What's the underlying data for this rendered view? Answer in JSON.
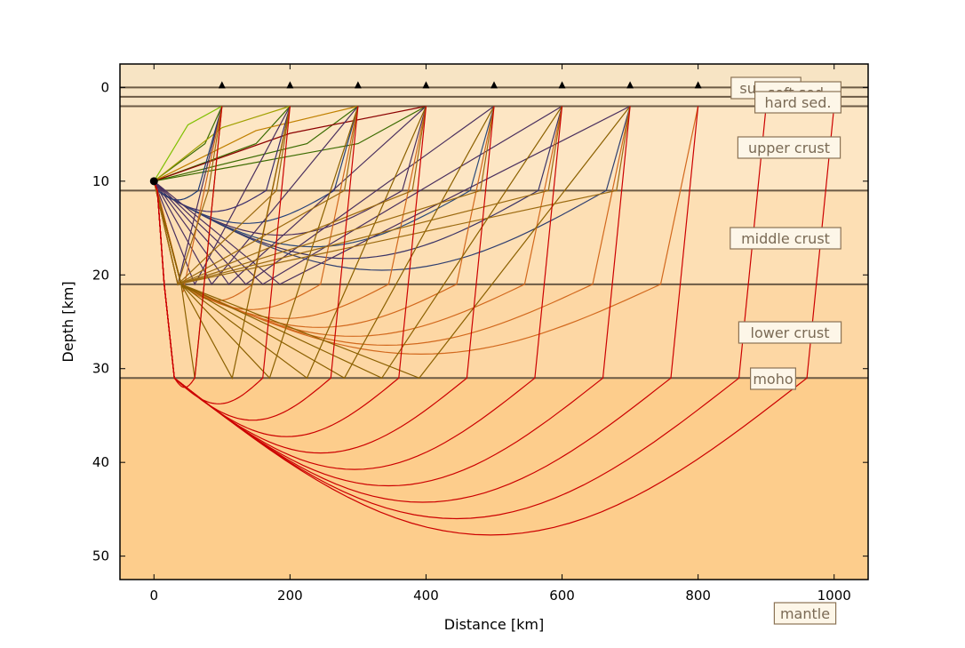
{
  "chart_data": {
    "type": "line",
    "title": "",
    "xlabel": "Distance [km]",
    "ylabel": "Depth [km]",
    "xlim": [
      -50,
      1050
    ],
    "ylim": [
      52.5,
      -2.5
    ],
    "y_inverted": true,
    "grid": false,
    "x_ticks": [
      "0",
      "200",
      "400",
      "600",
      "800",
      "1000"
    ],
    "y_ticks": [
      "0",
      "10",
      "20",
      "30",
      "40",
      "50"
    ],
    "layers": [
      {
        "name": "surface",
        "top": 0,
        "bottom": 1,
        "color": "#f7e4c4"
      },
      {
        "name": "soft sed.",
        "top": 1,
        "bottom": 2,
        "color": "#f7e4c4"
      },
      {
        "name": "hard sed.",
        "top": 2,
        "bottom": 11,
        "color": "#fde6c4"
      },
      {
        "name": "upper crust",
        "top": 11,
        "bottom": 21,
        "color": "#fde6c4"
      },
      {
        "name": "middle crust",
        "top": 21,
        "bottom": 31,
        "color": "#fddfb4"
      },
      {
        "name": "lower crust",
        "top": 31,
        "bottom": 52.5,
        "color": "#fdd7a4"
      },
      {
        "name": "moho",
        "top": 31,
        "bottom": 52.5,
        "color": "#fdd7a4"
      },
      {
        "name": "mantle",
        "top": 31,
        "bottom": 52.5,
        "color": "#fdcd8c"
      }
    ],
    "boundaries": [
      0,
      1,
      2,
      11,
      21,
      31
    ],
    "source": {
      "x": 0,
      "y": 10
    },
    "receivers": [
      100,
      200,
      300,
      400,
      500,
      600,
      700,
      800
    ],
    "ray_families": [
      {
        "type": "direct",
        "receivers": [
          100,
          200,
          300,
          400
        ],
        "color": "#8b0000"
      },
      {
        "type": "upper_refraction",
        "receivers": [
          100,
          200,
          300,
          400,
          500,
          600,
          700
        ],
        "color": "#1f3b73"
      },
      {
        "type": "middle_refraction",
        "receivers": [
          100,
          200,
          300,
          400,
          500,
          600,
          700,
          800
        ],
        "color": "#d2691e"
      },
      {
        "type": "lower_refraction",
        "receivers": [
          100,
          200,
          300,
          400,
          500,
          600,
          700,
          800
        ],
        "color": "#8b6000"
      },
      {
        "type": "mantle_refraction",
        "receivers": [
          100,
          200,
          300,
          400,
          500,
          600,
          700,
          800,
          900,
          1000
        ],
        "color": "#cc0000"
      }
    ],
    "colors": {
      "axes": "#000000",
      "boundary": "#6b5a45",
      "labelBox": "#fdf6e8",
      "labelBorder": "#8b7355",
      "labelText": "#7a6a55"
    }
  }
}
